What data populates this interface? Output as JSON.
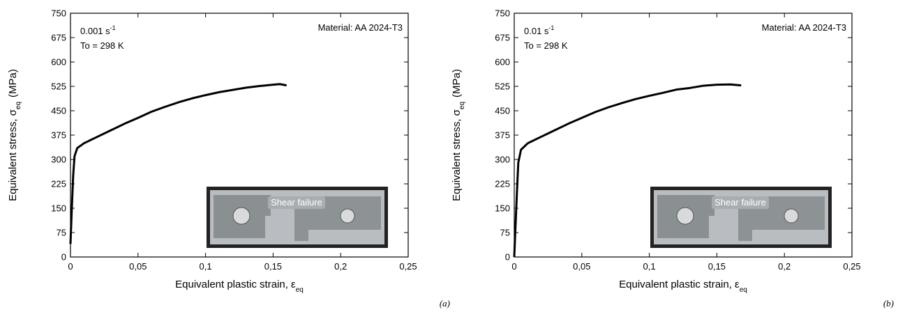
{
  "chart_data": [
    {
      "type": "line",
      "panel_label": "(a)",
      "rate": "0.001 s",
      "rate_sup": "-1",
      "temperature": "To = 298 K",
      "material": "Material: AA 2024-T3",
      "inset_label": "Shear failure",
      "xlabel": "Equivalent plastic strain, ε",
      "xlabel_sub": "eq",
      "ylabel": "Equivalent stress, σ",
      "ylabel_sub": "eq",
      "ylabel_unit": "(MPa)",
      "xlim": [
        0,
        0.25
      ],
      "ylim": [
        0,
        750
      ],
      "xticks": [
        0,
        {
          "value": 0.05,
          "label": "0,05"
        },
        {
          "value": 0.1,
          "label": "0,1"
        },
        {
          "value": 0.15,
          "label": "0,15"
        },
        {
          "value": 0.2,
          "label": "0,2"
        },
        {
          "value": 0.25,
          "label": "0,25"
        }
      ],
      "yticks": [
        0,
        75,
        150,
        225,
        300,
        375,
        450,
        525,
        600,
        675,
        750
      ],
      "x": [
        0,
        0.001,
        0.002,
        0.003,
        0.005,
        0.01,
        0.02,
        0.03,
        0.04,
        0.05,
        0.06,
        0.07,
        0.08,
        0.09,
        0.1,
        0.11,
        0.12,
        0.13,
        0.14,
        0.15,
        0.155,
        0.16
      ],
      "color": "#000000",
      "values": [
        40,
        150,
        250,
        310,
        335,
        350,
        370,
        390,
        410,
        428,
        447,
        462,
        476,
        488,
        498,
        507,
        514,
        521,
        526,
        530,
        532,
        528
      ]
    },
    {
      "type": "line",
      "panel_label": "(b)",
      "rate": "0.01 s",
      "rate_sup": "-1",
      "temperature": "To = 298 K",
      "material": "Material: AA 2024-T3",
      "inset_label": "Shear failure",
      "xlabel": "Equivalent plastic strain, ε",
      "xlabel_sub": "eq",
      "ylabel": "Equivalent stress, σ",
      "ylabel_sub": "eq",
      "ylabel_unit": "(MPa)",
      "xlim": [
        0,
        0.25
      ],
      "ylim": [
        0,
        750
      ],
      "xticks": [
        0,
        {
          "value": 0.05,
          "label": "0,05"
        },
        {
          "value": 0.1,
          "label": "0,1"
        },
        {
          "value": 0.15,
          "label": "0,15"
        },
        {
          "value": 0.2,
          "label": "0,2"
        },
        {
          "value": 0.25,
          "label": "0,25"
        }
      ],
      "yticks": [
        0,
        75,
        150,
        225,
        300,
        375,
        450,
        525,
        600,
        675,
        750
      ],
      "x": [
        0,
        0.001,
        0.002,
        0.003,
        0.005,
        0.01,
        0.02,
        0.03,
        0.04,
        0.05,
        0.06,
        0.07,
        0.08,
        0.09,
        0.1,
        0.11,
        0.12,
        0.13,
        0.14,
        0.15,
        0.16,
        0.168
      ],
      "color": "#000000",
      "values": [
        0,
        100,
        200,
        290,
        330,
        350,
        370,
        390,
        410,
        428,
        446,
        461,
        474,
        486,
        496,
        505,
        515,
        520,
        527,
        530,
        531,
        528
      ]
    }
  ]
}
